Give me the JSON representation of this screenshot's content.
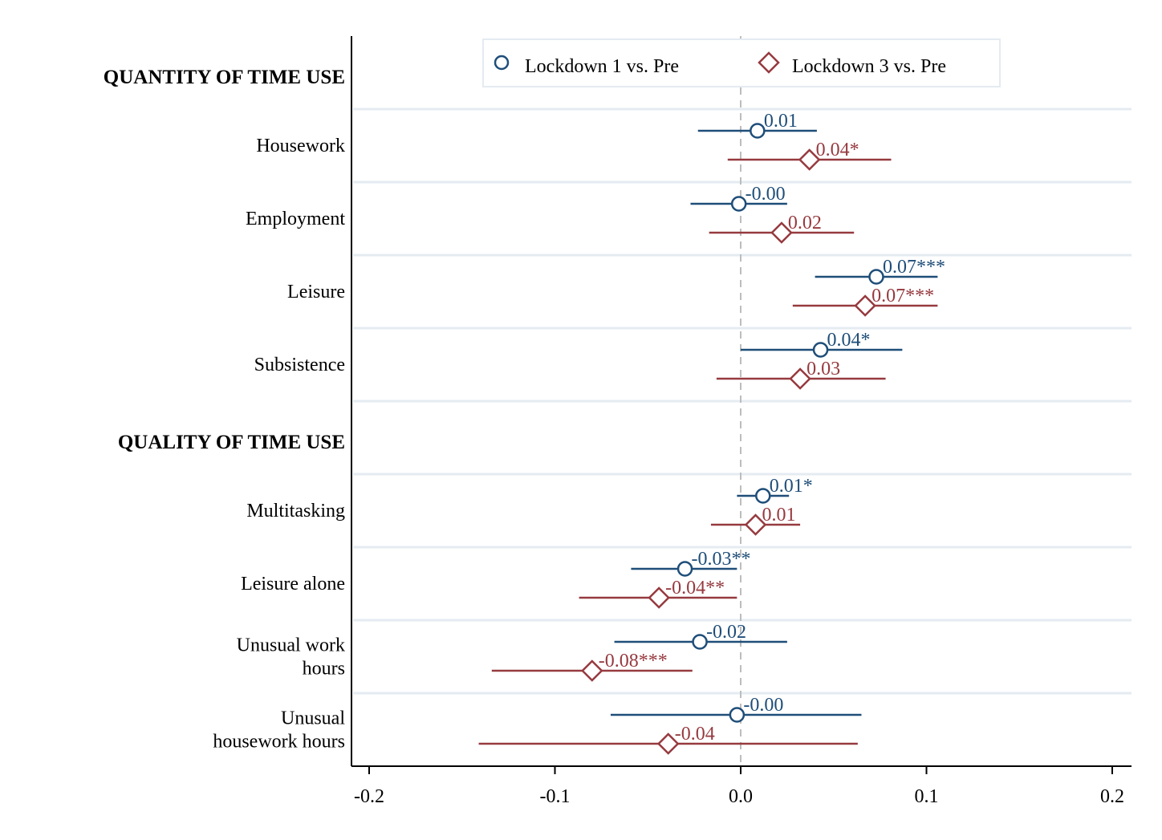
{
  "colors": {
    "lockdown1": "#1f4e79",
    "lockdown3": "#963a3f",
    "gridline": "#e4ebf1",
    "zero_line": "#bdbdbd",
    "axis": "#000000"
  },
  "legend": {
    "lockdown1_label": "Lockdown 1 vs. Pre",
    "lockdown3_label": "Lockdown 3 vs. Pre",
    "lockdown1_marker": "hollow-circle",
    "lockdown3_marker": "hollow-diamond",
    "placement": "top"
  },
  "chart_data": {
    "type": "scatter",
    "subtype": "coefficient-plot",
    "xlim": [
      -0.21,
      0.21
    ],
    "xticks": [
      -0.2,
      -0.1,
      0.0,
      0.1,
      0.2
    ],
    "xtick_labels": [
      "-0.2",
      "-0.1",
      "0.0",
      "0.1",
      "0.2"
    ],
    "reference_line": 0.0,
    "grid": "horizontal",
    "sections": [
      {
        "title": "QUANTITY OF TIME USE",
        "rows": [
          {
            "label": [
              "Housework"
            ],
            "lockdown1": {
              "estimate": 0.009,
              "ci": [
                -0.023,
                0.041
              ],
              "label": "0.01"
            },
            "lockdown3": {
              "estimate": 0.037,
              "ci": [
                -0.007,
                0.081
              ],
              "label": "0.04*"
            }
          },
          {
            "label": [
              "Employment"
            ],
            "lockdown1": {
              "estimate": -0.001,
              "ci": [
                -0.027,
                0.025
              ],
              "label": "-0.00"
            },
            "lockdown3": {
              "estimate": 0.022,
              "ci": [
                -0.017,
                0.061
              ],
              "label": "0.02"
            }
          },
          {
            "label": [
              "Leisure"
            ],
            "lockdown1": {
              "estimate": 0.073,
              "ci": [
                0.04,
                0.106
              ],
              "label": "0.07***"
            },
            "lockdown3": {
              "estimate": 0.067,
              "ci": [
                0.028,
                0.106
              ],
              "label": "0.07***"
            }
          },
          {
            "label": [
              "Subsistence"
            ],
            "lockdown1": {
              "estimate": 0.043,
              "ci": [
                0.0,
                0.087
              ],
              "label": "0.04*"
            },
            "lockdown3": {
              "estimate": 0.032,
              "ci": [
                -0.013,
                0.078
              ],
              "label": "0.03"
            }
          }
        ]
      },
      {
        "title": "QUALITY OF TIME USE",
        "rows": [
          {
            "label": [
              "Multitasking"
            ],
            "lockdown1": {
              "estimate": 0.012,
              "ci": [
                -0.002,
                0.026
              ],
              "label": "0.01*"
            },
            "lockdown3": {
              "estimate": 0.008,
              "ci": [
                -0.016,
                0.032
              ],
              "label": "0.01"
            }
          },
          {
            "label": [
              "Leisure alone"
            ],
            "lockdown1": {
              "estimate": -0.03,
              "ci": [
                -0.059,
                -0.002
              ],
              "label": "-0.03**"
            },
            "lockdown3": {
              "estimate": -0.044,
              "ci": [
                -0.087,
                -0.002
              ],
              "label": "-0.04**"
            }
          },
          {
            "label": [
              "Unusual work",
              "hours"
            ],
            "lockdown1": {
              "estimate": -0.022,
              "ci": [
                -0.068,
                0.025
              ],
              "label": "-0.02"
            },
            "lockdown3": {
              "estimate": -0.08,
              "ci": [
                -0.134,
                -0.026
              ],
              "label": "-0.08***"
            }
          },
          {
            "label": [
              "Unusual",
              "housework hours"
            ],
            "lockdown1": {
              "estimate": -0.002,
              "ci": [
                -0.07,
                0.065
              ],
              "label": "-0.00"
            },
            "lockdown3": {
              "estimate": -0.039,
              "ci": [
                -0.141,
                0.063
              ],
              "label": "-0.04"
            }
          }
        ]
      }
    ]
  }
}
